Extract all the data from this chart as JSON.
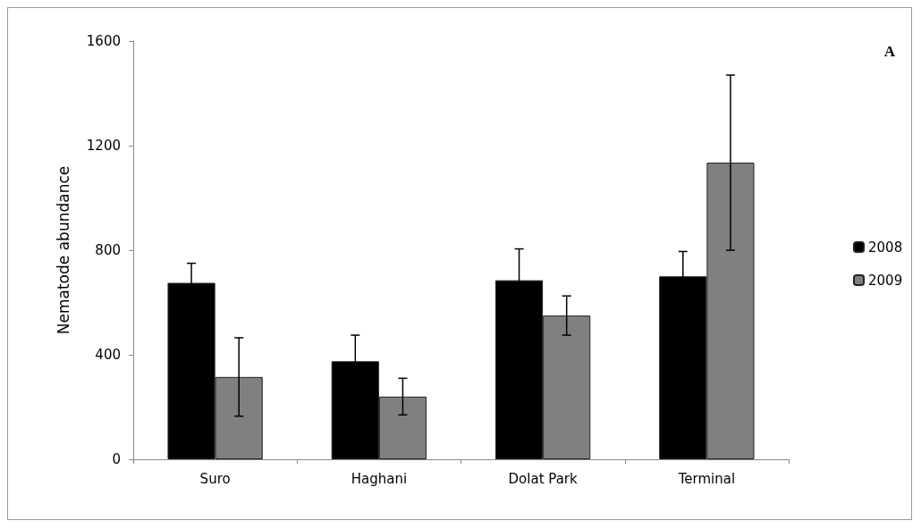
{
  "chart_data": {
    "type": "bar",
    "ylabel": "Nematode abundance",
    "annotations": [
      "A"
    ],
    "categories": [
      "Suro",
      "Haghani",
      "Dolat Park",
      "Terminal"
    ],
    "series": [
      {
        "name": "2008",
        "color": "#000000",
        "values": [
          675,
          375,
          685,
          700
        ],
        "errors": [
          75,
          100,
          120,
          95
        ]
      },
      {
        "name": "2009",
        "color": "#808080",
        "values": [
          315,
          240,
          550,
          1135
        ],
        "errors": [
          150,
          70,
          75,
          335
        ]
      }
    ],
    "ylim": [
      0,
      1600
    ],
    "yticks": [
      0,
      400,
      800,
      1200,
      1600
    ],
    "grid": false,
    "legend": "right"
  }
}
